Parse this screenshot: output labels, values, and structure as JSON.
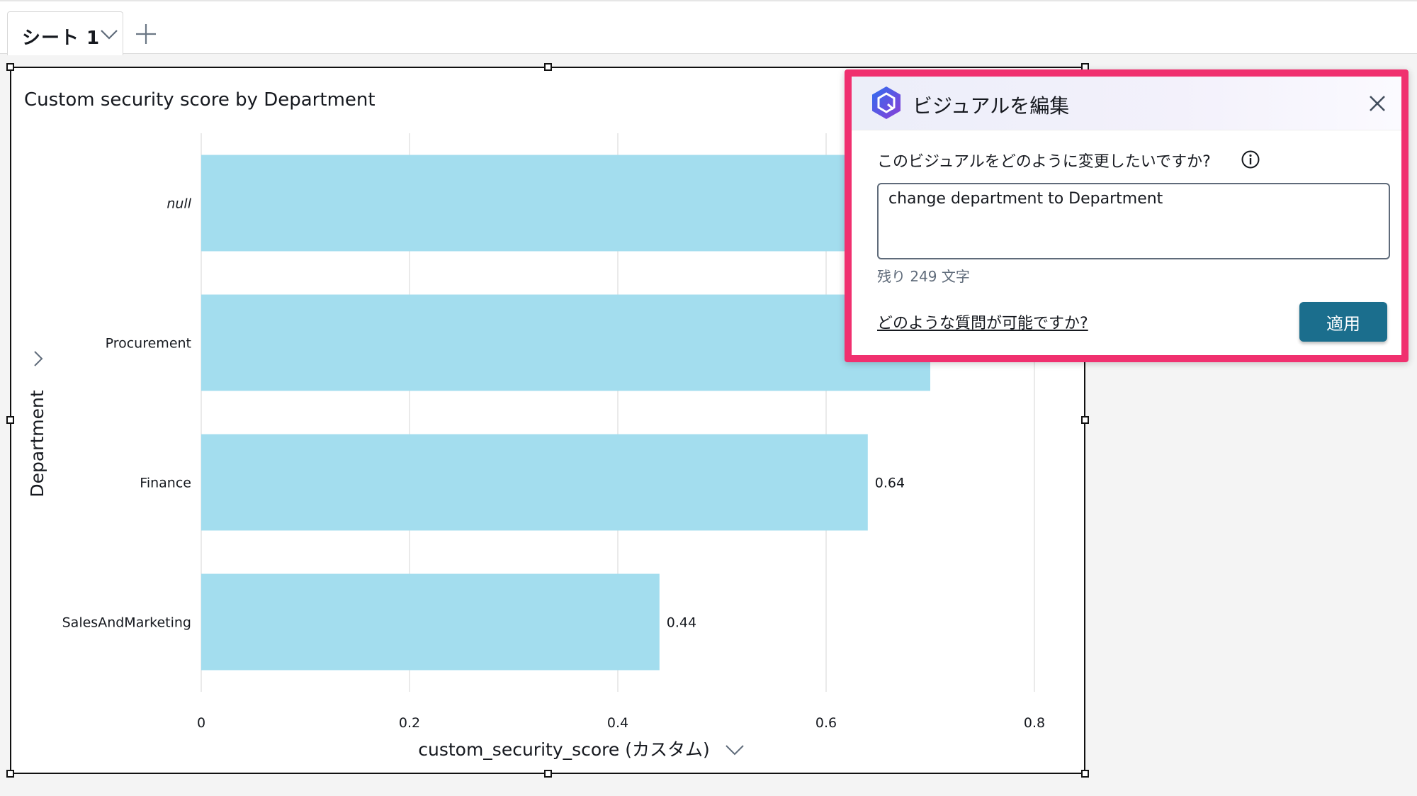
{
  "sheet": {
    "tab_label": "シート 1",
    "add_label": "+"
  },
  "visual": {
    "title": "Custom security score by Department"
  },
  "chart_data": {
    "type": "bar",
    "orientation": "horizontal",
    "title": "Custom security score by Department",
    "ylabel": "Department",
    "xlabel": "custom_security_score (カスタム)",
    "categories": [
      "null",
      "Procurement",
      "Finance",
      "SalesAndMarketing"
    ],
    "values": [
      0.62,
      0.7,
      0.64,
      0.44
    ],
    "data_labels": [
      "",
      "",
      "0.64",
      "0.44"
    ],
    "xlim": [
      0,
      0.8
    ],
    "xticks": [
      "0",
      "0.2",
      "0.4",
      "0.6",
      "0.8"
    ],
    "bar_color": "#a3ddee",
    "grid": true
  },
  "edit_panel": {
    "title": "ビジュアルを編集",
    "question_label": "このビジュアルをどのように変更したいですか?",
    "input_value": "change department to Department",
    "char_count": "残り 249 文字",
    "help_link": "どのような質問が可能ですか?",
    "apply_label": "適用",
    "accent_color": "#f0306f",
    "button_color": "#1b6e8d"
  }
}
